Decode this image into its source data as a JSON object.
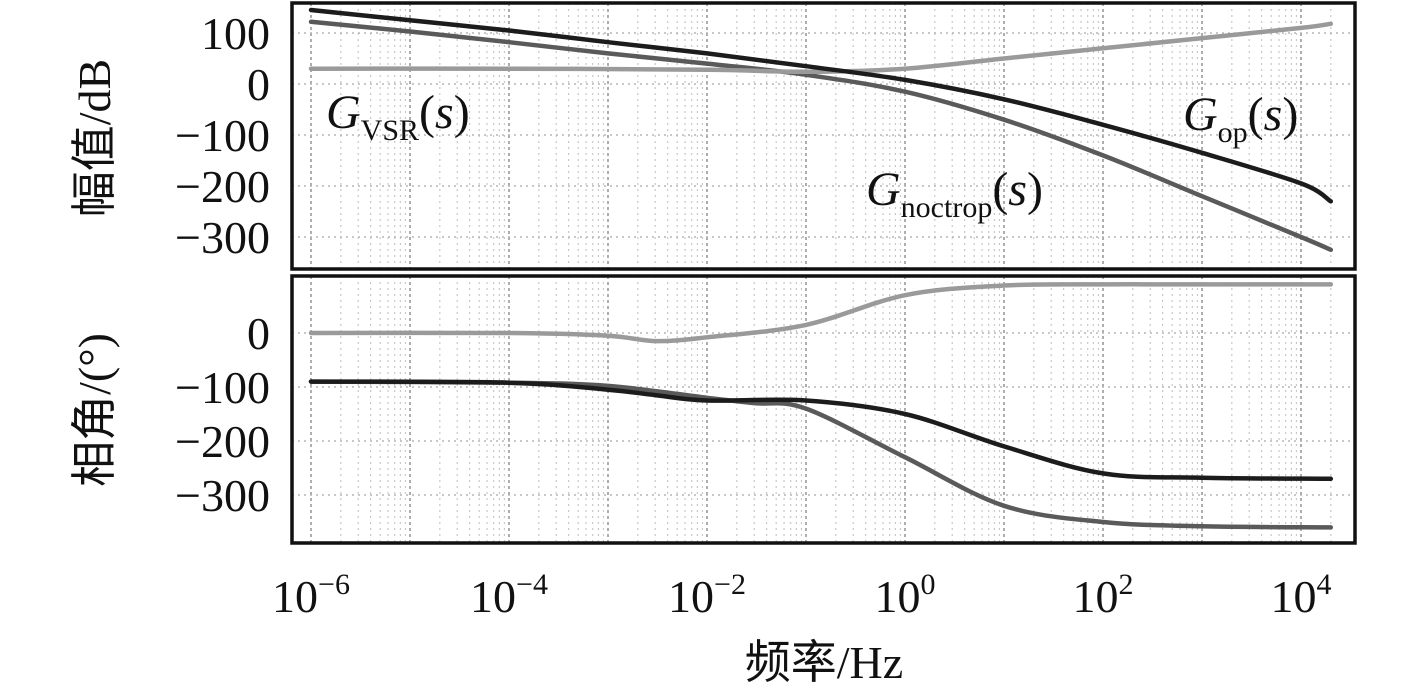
{
  "chart_data": [
    {
      "panel": "magnitude",
      "type": "line",
      "ylabel": "幅值/dB",
      "x_scale": "log",
      "xlim": [
        1e-06,
        20000
      ],
      "ylim": [
        -360,
        160
      ],
      "yticks": [
        100,
        0,
        -100,
        -200,
        -300
      ],
      "ytick_labels": [
        "100",
        "0",
        "−100",
        "−200",
        "−300"
      ],
      "grid": true,
      "series": [
        {
          "name": "G_VSR(s)",
          "label": {
            "main": "G",
            "sub": "VSR",
            "tail": "(s)"
          },
          "color": "#5a5a5a",
          "x": [
            1e-06,
            1e-05,
            0.0001,
            0.001,
            0.01,
            0.1,
            1,
            10,
            100,
            1000,
            10000,
            20000
          ],
          "y": [
            122,
            103,
            82,
            60,
            40,
            18,
            -15,
            -70,
            -140,
            -220,
            -300,
            -325
          ]
        },
        {
          "name": "G_op(s)",
          "label": {
            "main": "G",
            "sub": "op",
            "tail": "(s)"
          },
          "color": "#9a9a9a",
          "x": [
            1e-06,
            0.0001,
            0.01,
            0.1,
            1,
            10,
            100,
            1000,
            10000,
            20000
          ],
          "y": [
            30,
            30,
            28,
            24,
            30,
            50,
            70,
            90,
            110,
            118
          ]
        },
        {
          "name": "G_noctrop(s)",
          "label": {
            "main": "G",
            "sub": "noctrop",
            "tail": "(s)"
          },
          "color": "#1c1c1c",
          "x": [
            1e-06,
            1e-05,
            0.0001,
            0.001,
            0.01,
            0.1,
            1,
            10,
            100,
            1000,
            10000,
            20000
          ],
          "y": [
            145,
            125,
            105,
            82,
            60,
            35,
            8,
            -30,
            -80,
            -135,
            -195,
            -230
          ]
        }
      ]
    },
    {
      "panel": "phase",
      "type": "line",
      "ylabel": "相角/(°)",
      "xlabel": "频率/Hz",
      "x_scale": "log",
      "xlim": [
        1e-06,
        20000
      ],
      "ylim": [
        -370,
        100
      ],
      "yticks": [
        0,
        -100,
        -200,
        -300
      ],
      "ytick_labels": [
        "0",
        "−100",
        "−200",
        "−300"
      ],
      "xticks": [
        1e-06,
        0.0001,
        0.01,
        1,
        100,
        10000
      ],
      "xtick_labels": [
        {
          "base": "10",
          "exp": "−6"
        },
        {
          "base": "10",
          "exp": "−4"
        },
        {
          "base": "10",
          "exp": "−2"
        },
        {
          "base": "10",
          "exp": "0"
        },
        {
          "base": "10",
          "exp": "2"
        },
        {
          "base": "10",
          "exp": "4"
        }
      ],
      "grid": true,
      "series": [
        {
          "name": "G_VSR(s)",
          "color": "#5a5a5a",
          "x": [
            1e-06,
            0.0001,
            0.001,
            0.01,
            0.03,
            0.1,
            1,
            10,
            100,
            1000,
            20000
          ],
          "y": [
            -90,
            -92,
            -98,
            -120,
            -130,
            -140,
            -230,
            -320,
            -350,
            -358,
            -360
          ]
        },
        {
          "name": "G_op(s)",
          "color": "#9a9a9a",
          "x": [
            1e-06,
            0.0001,
            0.001,
            0.003,
            0.01,
            0.1,
            1,
            10,
            100,
            1000,
            20000
          ],
          "y": [
            0,
            0,
            -5,
            -15,
            -8,
            15,
            70,
            88,
            90,
            90,
            90
          ]
        },
        {
          "name": "G_noctrop(s)",
          "color": "#1c1c1c",
          "x": [
            1e-06,
            0.0001,
            0.001,
            0.003,
            0.01,
            0.1,
            1,
            10,
            100,
            1000,
            20000
          ],
          "y": [
            -90,
            -92,
            -105,
            -115,
            -125,
            -125,
            -150,
            -210,
            -260,
            -268,
            -270
          ]
        }
      ]
    }
  ]
}
